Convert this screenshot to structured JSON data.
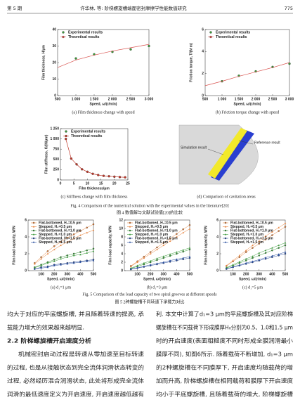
{
  "header": {
    "issue": "第 5 期",
    "title": "许华林, 等: 阶梯螺旋槽端面密封摩擦学性能数值研究",
    "page": "775"
  },
  "figure4": {
    "caption_en": "Fig. 4   Comparison of the numerical solution with the experimental values in the literature[20]",
    "caption_zh": "图 4   数值解与文献试验值[20]的比较",
    "diagram": {
      "reference": "Reference result",
      "simulation": "Simulation result",
      "caption": "(d) Comparison of cavitation areas"
    }
  },
  "figure5": {
    "caption_en": "Fig. 5   Comparison of the load capacity of two spiral grooves at different speeds",
    "caption_zh": "图 5   2种螺旋槽不同转速下承载力对比"
  },
  "chart_data": [
    {
      "type": "line",
      "caption": "(a) Film thickness change with speed",
      "xlabel": "Speed, ω/(r/min)",
      "ylabel": "Film thickness, H/μm",
      "xlim": [
        500,
        3000
      ],
      "xticks": [
        500,
        {
          "value": 1000,
          "label": "1 000"
        },
        {
          "value": 1500,
          "label": "1 500"
        },
        {
          "value": 2000,
          "label": "2 000"
        },
        {
          "value": 2500,
          "label": "2 500"
        },
        {
          "value": 3000,
          "label": "3 000"
        }
      ],
      "ylim": [
        0,
        40
      ],
      "yticks": [
        0,
        10,
        20,
        30,
        40
      ],
      "grid": false,
      "legend": "upper left",
      "series": [
        {
          "name": "Experimental results",
          "color": "#3a9a3a",
          "style": "markers",
          "marker": "circle",
          "x": [
            1000,
            1500,
            2000,
            2500,
            3000
          ],
          "values": [
            22.5,
            25,
            26.5,
            28,
            30
          ]
        },
        {
          "name": "Theoretical results",
          "color": "#d9534f",
          "style": "line",
          "marker": "circle",
          "x": [
            500,
            1000,
            1500,
            2000,
            2500,
            3000
          ],
          "values": [
            17,
            21.5,
            24.5,
            27,
            29,
            31
          ]
        }
      ]
    },
    {
      "type": "line",
      "caption": "(b) Friction torque change with speed",
      "xlabel": "Speed, ω/(r/min)",
      "ylabel": "Friction torque, T/(N·m)",
      "xlim": [
        500,
        3000
      ],
      "xticks": [
        500,
        {
          "value": 1000,
          "label": "1 000"
        },
        {
          "value": 1500,
          "label": "1 500"
        },
        {
          "value": 2000,
          "label": "2 000"
        },
        {
          "value": 2500,
          "label": "2 500"
        },
        {
          "value": 3000,
          "label": "3 000"
        }
      ],
      "ylim": [
        0,
        6
      ],
      "yticks": [
        0,
        2,
        4,
        6
      ],
      "grid": false,
      "legend": "upper left",
      "series": [
        {
          "name": "Experimental results",
          "color": "#3a9a3a",
          "style": "markers",
          "marker": "circle",
          "x": [
            1000,
            1500,
            2000,
            2500,
            3000
          ],
          "values": [
            1.3,
            1.8,
            2.2,
            2.6,
            2.9
          ]
        },
        {
          "name": "Theoretical results",
          "color": "#d9534f",
          "style": "line",
          "marker": "circle",
          "x": [
            500,
            1000,
            1500,
            2000,
            2500,
            3000
          ],
          "values": [
            0.9,
            1.3,
            1.75,
            2.15,
            2.55,
            3.0
          ]
        }
      ]
    },
    {
      "type": "line",
      "caption": "(c) Stiffness change with film thickness",
      "xlabel": "Film thickness/μm",
      "ylabel": "Film stiffness, K/(N/μm)",
      "xlim": [
        0,
        25
      ],
      "xticks": [
        0,
        5,
        10,
        15,
        20,
        25
      ],
      "ylim": [
        0,
        1250
      ],
      "yticks": [
        0,
        250,
        500,
        750,
        {
          "value": 1000,
          "label": "1 000"
        },
        {
          "value": 1250,
          "label": "1 250"
        }
      ],
      "grid": false,
      "legend": "upper left",
      "series": [
        {
          "name": "Experimental results",
          "color": "#3a9a3a",
          "style": "markers",
          "marker": "circle",
          "x": [],
          "values": []
        },
        {
          "name": "Theoretical results",
          "color": "#c0392b",
          "style": "line-markers",
          "marker": "circle",
          "x": [
            2,
            4,
            6,
            8,
            10,
            12,
            14,
            16,
            18,
            20,
            22,
            24
          ],
          "values": [
            1000,
            520,
            380,
            260,
            200,
            150,
            120,
            100,
            90,
            80,
            70,
            65
          ]
        }
      ]
    },
    {
      "type": "line",
      "caption": "(a) d₁=1 μm",
      "xlabel": "Speed, ω/(r/min)",
      "ylabel": "Film load capacity, W/N",
      "x": [
        50,
        100,
        150,
        200,
        250,
        300,
        350,
        400,
        450,
        500
      ],
      "xlim": [
        0,
        500
      ],
      "xticks": [
        100,
        200,
        300,
        400,
        500
      ],
      "ylim": [
        0,
        6
      ],
      "yticks": [
        0,
        2,
        4,
        6
      ],
      "grid": false,
      "legend": "upper left",
      "series": [
        {
          "name": "Flat-bottomed, H₀=0.5 μm",
          "color": "#e8823a",
          "style": "line-markers",
          "marker": "circle",
          "values": [
            0.9,
            1.6,
            2.3,
            2.9,
            3.4,
            3.9,
            4.3,
            4.7,
            5.1,
            5.5
          ]
        },
        {
          "name": "Stepped, H₀=0.5 μm",
          "color": "#e8823a",
          "style": "line-markers",
          "marker": "triangle",
          "values": [
            0.8,
            1.4,
            2.0,
            2.5,
            3.0,
            3.4,
            3.8,
            4.2,
            4.5,
            4.8
          ]
        },
        {
          "name": "Flat-bottomed, H₀=1.0 μm",
          "color": "#3a9a3a",
          "style": "line-markers",
          "marker": "circle",
          "values": [
            0.4,
            0.7,
            1.0,
            1.3,
            1.6,
            1.8,
            2.0,
            2.2,
            2.4,
            2.6
          ]
        },
        {
          "name": "Stepped, H₀=1.0 μm",
          "color": "#3a9a3a",
          "style": "line-markers",
          "marker": "triangle",
          "values": [
            0.35,
            0.6,
            0.9,
            1.1,
            1.4,
            1.6,
            1.8,
            1.9,
            2.1,
            2.3
          ]
        },
        {
          "name": "Flat-bottomed, H₀=1.5 μm",
          "color": "#2a4fa0",
          "style": "line-markers",
          "marker": "circle",
          "values": [
            0.2,
            0.4,
            0.5,
            0.7,
            0.8,
            0.9,
            1.0,
            1.1,
            1.2,
            1.3
          ]
        },
        {
          "name": "Stepped, H₀=1.5 μm",
          "color": "#2a4fa0",
          "style": "line-markers",
          "marker": "triangle",
          "values": [
            0.2,
            0.3,
            0.4,
            0.6,
            0.7,
            0.8,
            0.9,
            1.0,
            1.1,
            1.2
          ]
        }
      ]
    },
    {
      "type": "line",
      "caption": "(b) d₁=3 μm",
      "xlabel": "Speed, ω/(r/min)",
      "ylabel": "Film load capacity, W/N",
      "x": [
        50,
        100,
        150,
        200,
        250,
        300,
        350,
        400,
        450,
        500
      ],
      "xlim": [
        0,
        500
      ],
      "xticks": [
        100,
        200,
        300,
        400,
        500
      ],
      "ylim": [
        0,
        12
      ],
      "yticks": [
        0,
        2,
        4,
        6,
        8,
        10,
        12
      ],
      "grid": false,
      "legend": "upper left",
      "series": [
        {
          "name": "Flat-bottomed, H₀=0.5 μm",
          "color": "#e8823a",
          "style": "line-markers",
          "marker": "circle",
          "values": [
            1.1,
            2.2,
            3.3,
            4.4,
            5.5,
            6.6,
            7.6,
            8.7,
            9.8,
            10.8
          ]
        },
        {
          "name": "Stepped, H₀=0.5 μm",
          "color": "#e8823a",
          "style": "line-markers",
          "marker": "triangle",
          "values": [
            1.0,
            2.0,
            3.0,
            4.0,
            5.0,
            6.0,
            7.0,
            8.0,
            9.0,
            9.9
          ]
        },
        {
          "name": "Flat-bottomed, H₀=1.0 μm",
          "color": "#3a9a3a",
          "style": "line-markers",
          "marker": "circle",
          "values": [
            0.5,
            1.0,
            1.5,
            2.0,
            2.5,
            3.0,
            3.5,
            4.0,
            4.5,
            5.0
          ]
        },
        {
          "name": "Stepped, H₀=1.0 μm",
          "color": "#3a9a3a",
          "style": "line-markers",
          "marker": "triangle",
          "values": [
            0.6,
            1.2,
            1.8,
            2.3,
            2.9,
            3.4,
            3.9,
            4.4,
            4.9,
            5.4
          ]
        },
        {
          "name": "Flat-bottomed, H₀=1.5 μm",
          "color": "#2a4fa0",
          "style": "line-markers",
          "marker": "circle",
          "values": [
            0.3,
            0.6,
            0.9,
            1.2,
            1.5,
            1.8,
            2.1,
            2.4,
            2.7,
            3.0
          ]
        },
        {
          "name": "Stepped, H₀=1.5 μm",
          "color": "#2a4fa0",
          "style": "line-markers",
          "marker": "triangle",
          "values": [
            0.35,
            0.7,
            1.0,
            1.4,
            1.7,
            2.0,
            2.4,
            2.7,
            3.0,
            3.3
          ]
        }
      ]
    },
    {
      "type": "line",
      "caption": "(c) d₁=5 μm",
      "xlabel": "Speed, ω/(r/min)",
      "ylabel": "Film load capacity, W/N",
      "x": [
        50,
        100,
        150,
        200,
        250,
        300,
        350,
        400,
        450,
        500
      ],
      "xlim": [
        0,
        500
      ],
      "xticks": [
        100,
        200,
        300,
        400,
        500
      ],
      "ylim": [
        0,
        6
      ],
      "yticks": [
        0,
        2,
        4,
        6
      ],
      "grid": false,
      "legend": "upper left",
      "series": [
        {
          "name": "Flat-bottomed, H₀=0.5 μm",
          "color": "#e8823a",
          "style": "line-markers",
          "marker": "circle",
          "values": [
            0.55,
            1.1,
            1.6,
            2.2,
            2.7,
            3.2,
            3.7,
            4.2,
            4.7,
            5.2
          ]
        },
        {
          "name": "Stepped, H₀=0.5 μm",
          "color": "#e8823a",
          "style": "line-markers",
          "marker": "triangle",
          "values": [
            0.6,
            1.2,
            1.8,
            2.4,
            3.0,
            3.5,
            4.1,
            4.6,
            5.1,
            5.6
          ]
        },
        {
          "name": "Flat-bottomed, H₀=1.0 μm",
          "color": "#3a9a3a",
          "style": "line-markers",
          "marker": "circle",
          "values": [
            0.3,
            0.6,
            0.9,
            1.2,
            1.5,
            1.8,
            2.1,
            2.4,
            2.7,
            3.0
          ]
        },
        {
          "name": "Stepped, H₀=1.0 μm",
          "color": "#3a9a3a",
          "style": "line-markers",
          "marker": "triangle",
          "values": [
            0.35,
            0.7,
            1.05,
            1.4,
            1.7,
            2.1,
            2.4,
            2.7,
            3.0,
            3.3
          ]
        },
        {
          "name": "Flat-bottomed, H₀=1.5 μm",
          "color": "#2a4fa0",
          "style": "line-markers",
          "marker": "circle",
          "values": [
            0.2,
            0.4,
            0.6,
            0.8,
            1.0,
            1.2,
            1.4,
            1.6,
            1.8,
            2.0
          ]
        },
        {
          "name": "Stepped, H₀=1.5 μm",
          "color": "#2a4fa0",
          "style": "line-markers",
          "marker": "triangle",
          "values": [
            0.22,
            0.45,
            0.67,
            0.9,
            1.1,
            1.3,
            1.55,
            1.75,
            1.95,
            2.2
          ]
        }
      ]
    }
  ],
  "body": {
    "left": [
      "均大于对应的平底螺旋槽, 并且随着转速的提高, 承",
      "载能力增大的效果越来越明显.",
      "2.2   阶梯螺旋槽开启速度分析",
      "机械密封启动过程是转速从零加速至目标转速",
      "的过程, 也是从接触状态到完全流体润滑状态转变的",
      "过程, 必然经历混合润滑状态, 此处将形成完全流体",
      "润滑的最低速度定义为开启速度, 开启速度越低越有"
    ],
    "right": [
      "利. 本文中计算了d₁=3 μm的平底螺旋槽及其对应阶梯",
      "螺旋槽在不同载荷下形成膜厚H₀分别为0.5、1.0和1.5 μm",
      "时的开启速度(表面粗糙度不同时形成全膜润滑最小",
      "膜厚不同), 如图6所示. 随着载荷不断增加, d₁=3 μm",
      "的2种螺旋槽在不同膜厚下, 开启速度均随载荷的增",
      "加而升高, 阶梯螺旋槽在相同载荷和膜厚下开启速度",
      "均小于平底螺旋槽, 且随着载荷的增大, 阶梯螺旋槽"
    ]
  }
}
